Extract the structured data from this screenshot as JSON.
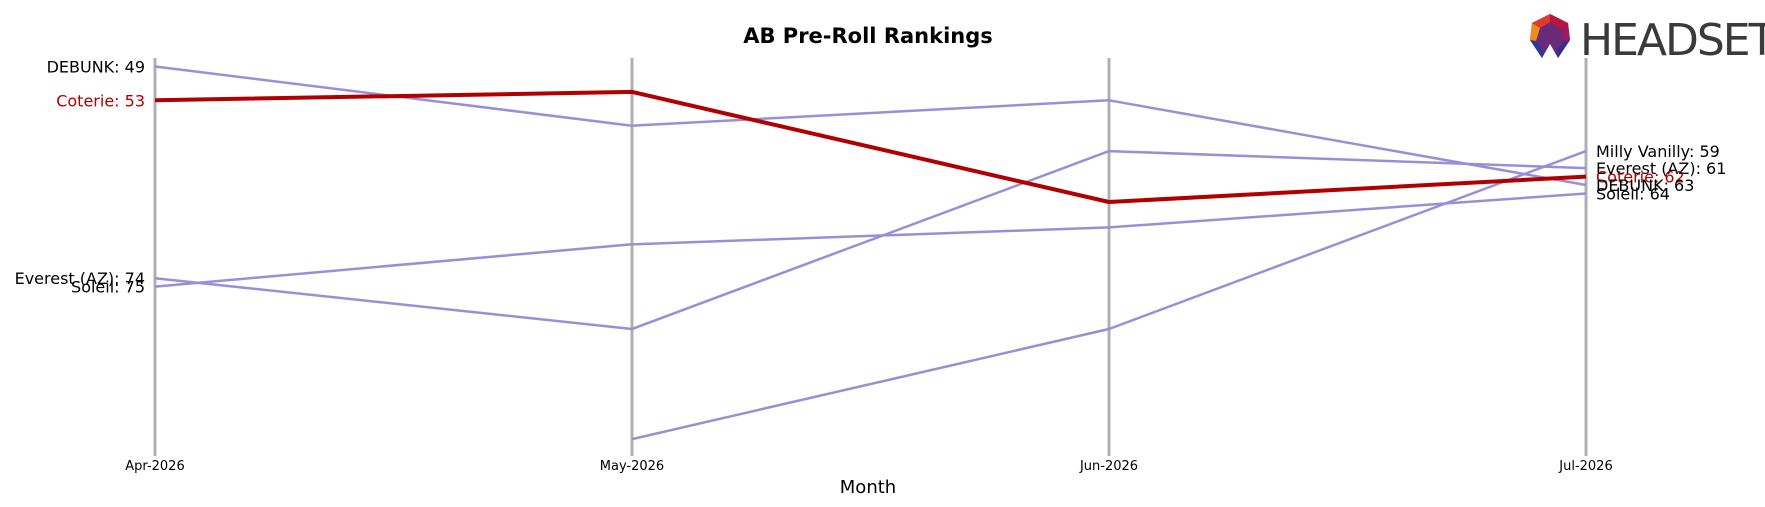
{
  "chart_data": {
    "type": "line",
    "title": "AB Pre-Roll Rankings",
    "xlabel": "Month",
    "ylabel": "",
    "categories": [
      "Apr-2026",
      "May-2026",
      "Jun-2026",
      "Jul-2026"
    ],
    "y_inverted": true,
    "ylim": [
      48,
      95
    ],
    "grid": "vertical lines at each month",
    "highlight_color": "#b00000",
    "series_color": "#9a8fd6",
    "highlight": "Coterie",
    "series": [
      {
        "name": "DEBUNK",
        "values": [
          49,
          56,
          53,
          63
        ]
      },
      {
        "name": "Coterie",
        "values": [
          53,
          52,
          65,
          62
        ]
      },
      {
        "name": "Everest (AZ)",
        "values": [
          74,
          80,
          59,
          61
        ]
      },
      {
        "name": "Soleil",
        "values": [
          75,
          70,
          68,
          64
        ]
      },
      {
        "name": "Milly Vanilly",
        "values": [
          null,
          93,
          80,
          59
        ]
      }
    ],
    "left_labels": [
      {
        "text": "DEBUNK: 49",
        "series": "DEBUNK"
      },
      {
        "text": "Coterie: 53",
        "series": "Coterie"
      },
      {
        "text": "Everest (AZ): 74",
        "series": "Everest (AZ)"
      },
      {
        "text": "Soleil: 75",
        "series": "Soleil"
      }
    ],
    "right_labels": [
      {
        "text": "Milly Vanilly: 59",
        "series": "Milly Vanilly"
      },
      {
        "text": "Everest (AZ): 61",
        "series": "Everest (AZ)"
      },
      {
        "text": "Coterie: 62",
        "series": "Coterie"
      },
      {
        "text": "DEBUNK: 63",
        "series": "DEBUNK"
      },
      {
        "text": "Soleil: 64",
        "series": "Soleil"
      }
    ]
  },
  "logo": {
    "text": "HEADSET",
    "icon": "headset-logo-icon"
  }
}
